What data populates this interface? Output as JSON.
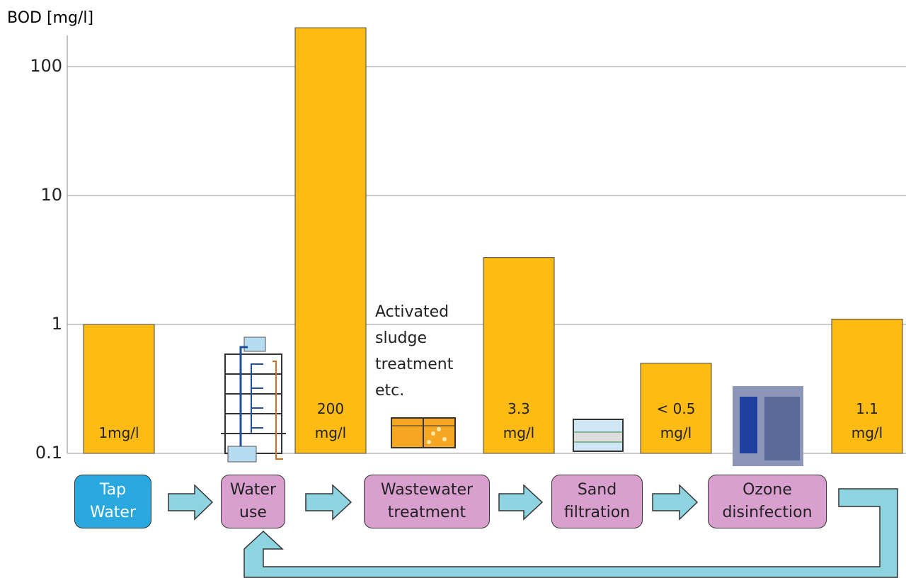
{
  "chart_data": {
    "type": "bar",
    "y_label": "BOD [mg/l]",
    "log_scale": true,
    "grid": true,
    "color": "#fdbb13",
    "ylim": [
      0.1,
      300
    ],
    "yticks": [
      0.1,
      1,
      10,
      100
    ],
    "values": [
      1,
      200,
      3.3,
      0.5,
      1.1
    ],
    "value_labels": [
      "1mg/l",
      "200\nmg/l",
      "3.3\nmg/l",
      "< 0.5\nmg/l",
      "1.1\nmg/l"
    ],
    "annotation": "Activated\nsludge\ntreatment\netc."
  },
  "process": {
    "nodes": [
      {
        "label": "Tap\nWater",
        "color": "#29a8e0"
      },
      {
        "label": "Water\nuse",
        "color": "#d9a0cf"
      },
      {
        "label": "Wastewater\ntreatment",
        "color": "#d9a0cf"
      },
      {
        "label": "Sand\nfiltration",
        "color": "#d9a0cf"
      },
      {
        "label": "Ozone\ndisinfection",
        "color": "#d9a0cf"
      }
    ]
  }
}
